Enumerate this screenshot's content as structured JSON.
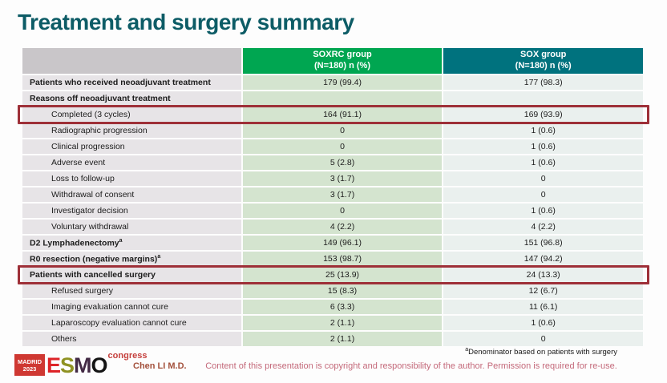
{
  "slide": {
    "title": "Treatment and surgery summary",
    "author": "Chen LI M.D.",
    "footnote_sup": "a",
    "footnote_text": "Denominator based on patients with surgery",
    "copyright": "Content of this presentation is copyright and responsibility of the author. Permission is required for re-use.",
    "logo": {
      "venue": "MADRID",
      "year": "2023",
      "org": "ESMO",
      "suffix": "congress"
    }
  },
  "colors": {
    "title": "#0d5c66",
    "soxrc_header_bg": "#00a651",
    "sox_header_bg": "#00727e",
    "label_header_bg": "#c9c6c9",
    "label_cell_bg": "#e7e4e7",
    "soxrc_cell_bg": "#d4e4cf",
    "sox_cell_bg": "#eaf0ee",
    "highlight_border": "#9e3038",
    "copyright_text": "#c4697a",
    "author_text": "#a3503b"
  },
  "table": {
    "columns": [
      {
        "line1": "SOXRC group",
        "line2": "(N=180) n (%)"
      },
      {
        "line1": "SOX group",
        "line2": "(N=180) n (%)"
      }
    ],
    "rows": [
      {
        "label": "Patients who received neoadjuvant treatment",
        "bold": true,
        "indent": false,
        "soxrc": "179 (99.4)",
        "sox": "177 (98.3)",
        "highlight": false
      },
      {
        "label": "Reasons off neoadjuvant treatment",
        "bold": true,
        "indent": false,
        "soxrc": "",
        "sox": "",
        "highlight": false
      },
      {
        "label": "Completed (3 cycles)",
        "bold": false,
        "indent": true,
        "soxrc": "164 (91.1)",
        "sox": "169 (93.9)",
        "highlight": true
      },
      {
        "label": "Radiographic progression",
        "bold": false,
        "indent": true,
        "soxrc": "0",
        "sox": "1 (0.6)",
        "highlight": false
      },
      {
        "label": "Clinical progression",
        "bold": false,
        "indent": true,
        "soxrc": "0",
        "sox": "1 (0.6)",
        "highlight": false
      },
      {
        "label": "Adverse event",
        "bold": false,
        "indent": true,
        "soxrc": "5 (2.8)",
        "sox": "1 (0.6)",
        "highlight": false
      },
      {
        "label": "Loss to follow-up",
        "bold": false,
        "indent": true,
        "soxrc": "3 (1.7)",
        "sox": "0",
        "highlight": false
      },
      {
        "label": "Withdrawal of consent",
        "bold": false,
        "indent": true,
        "soxrc": "3 (1.7)",
        "sox": "0",
        "highlight": false
      },
      {
        "label": "Investigator decision",
        "bold": false,
        "indent": true,
        "soxrc": "0",
        "sox": "1 (0.6)",
        "highlight": false
      },
      {
        "label": "Voluntary withdrawal",
        "bold": false,
        "indent": true,
        "soxrc": "4 (2.2)",
        "sox": "4 (2.2)",
        "highlight": false
      },
      {
        "label": "D2 Lymphadenectomy",
        "sup": "a",
        "bold": true,
        "indent": false,
        "soxrc": "149 (96.1)",
        "sox": "151 (96.8)",
        "highlight": false
      },
      {
        "label": "R0 resection (negative margins)",
        "sup": "a",
        "bold": true,
        "indent": false,
        "soxrc": "153 (98.7)",
        "sox": "147 (94.2)",
        "highlight": false
      },
      {
        "label": "Patients with cancelled surgery",
        "bold": true,
        "indent": false,
        "soxrc": "25 (13.9)",
        "sox": "24 (13.3)",
        "highlight": true
      },
      {
        "label": "Refused surgery",
        "bold": false,
        "indent": true,
        "soxrc": "15 (8.3)",
        "sox": "12 (6.7)",
        "highlight": false
      },
      {
        "label": "Imaging evaluation cannot cure",
        "bold": false,
        "indent": true,
        "soxrc": "6 (3.3)",
        "sox": "11 (6.1)",
        "highlight": false
      },
      {
        "label": "Laparoscopy evaluation cannot cure",
        "bold": false,
        "indent": true,
        "soxrc": "2 (1.1)",
        "sox": "1 (0.6)",
        "highlight": false
      },
      {
        "label": "Others",
        "bold": false,
        "indent": true,
        "soxrc": "2 (1.1)",
        "sox": "0",
        "highlight": false
      }
    ]
  }
}
